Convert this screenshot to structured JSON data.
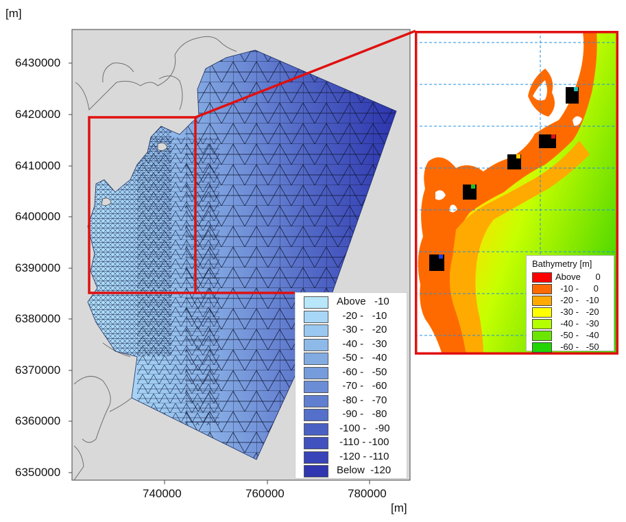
{
  "axes": {
    "unit_y": "[m]",
    "unit_x": "[m]",
    "y_ticks": [
      "6430000",
      "6420000",
      "6410000",
      "6400000",
      "6390000",
      "6380000",
      "6370000",
      "6360000",
      "6350000"
    ],
    "x_ticks": [
      "740000",
      "760000",
      "780000"
    ]
  },
  "main_legend": {
    "entries": [
      {
        "text": "Above   -10",
        "color": "#b8e6fb"
      },
      {
        "text": "  -20 -   -10",
        "color": "#a8d6f6"
      },
      {
        "text": "  -30 -   -20",
        "color": "#9ac8f0"
      },
      {
        "text": "  -40 -   -30",
        "color": "#8ebae9"
      },
      {
        "text": "  -50 -   -40",
        "color": "#82abe2"
      },
      {
        "text": "  -60 -   -50",
        "color": "#769cdc"
      },
      {
        "text": "  -70 -   -60",
        "color": "#6b8dd6"
      },
      {
        "text": "  -80 -   -70",
        "color": "#607fd0"
      },
      {
        "text": "  -90 -   -80",
        "color": "#5570ca"
      },
      {
        "text": " -100 -   -90",
        "color": "#4a61c4"
      },
      {
        "text": " -110 - -100",
        "color": "#4152be"
      },
      {
        "text": " -120 - -110",
        "color": "#3844b8"
      },
      {
        "text": "Below  -120",
        "color": "#2f36b0"
      }
    ]
  },
  "inset_legend": {
    "title": "Bathymetry [m]",
    "entries": [
      {
        "text": "Above      0",
        "color": "#ff0000"
      },
      {
        "text": "  -10 -      0",
        "color": "#ff6a00"
      },
      {
        "text": "  -20 -   -10",
        "color": "#ffaa00"
      },
      {
        "text": "  -30 -   -20",
        "color": "#ffff00"
      },
      {
        "text": "  -40 -   -30",
        "color": "#b4ff00"
      },
      {
        "text": "  -50 -   -40",
        "color": "#6ae600"
      },
      {
        "text": "  -60 -   -50",
        "color": "#22d400"
      }
    ]
  },
  "colors": {
    "land": "#d9d9d9",
    "highlight": "#e01010",
    "mesh_shallow": "#b8e6fb",
    "mesh_deep": "#3038b0",
    "grid_line": "#1e8fe6"
  }
}
